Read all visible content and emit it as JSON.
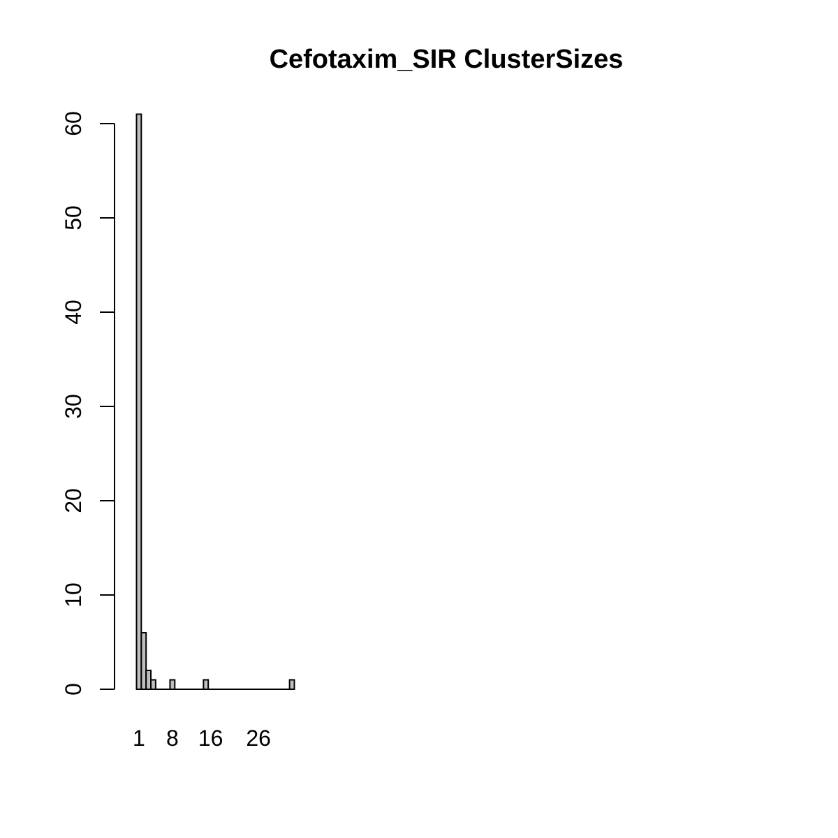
{
  "chart_data": {
    "type": "bar",
    "title": "Cefotaxim_SIR ClusterSizes",
    "xlabel": "",
    "ylabel": "",
    "ylim": [
      0,
      60
    ],
    "xlim": [
      0.5,
      33.5
    ],
    "yticks": [
      0,
      10,
      20,
      30,
      40,
      50,
      60
    ],
    "x_tick_labels": [
      {
        "label": "1",
        "at": 1
      },
      {
        "label": "8",
        "at": 8
      },
      {
        "label": "16",
        "at": 16
      },
      {
        "label": "26",
        "at": 26
      }
    ],
    "categories": [
      1,
      2,
      3,
      4,
      8,
      15,
      33
    ],
    "values": [
      61,
      6,
      2,
      1,
      1,
      1,
      1
    ],
    "grid": false,
    "bar_color": "#bebebe"
  }
}
